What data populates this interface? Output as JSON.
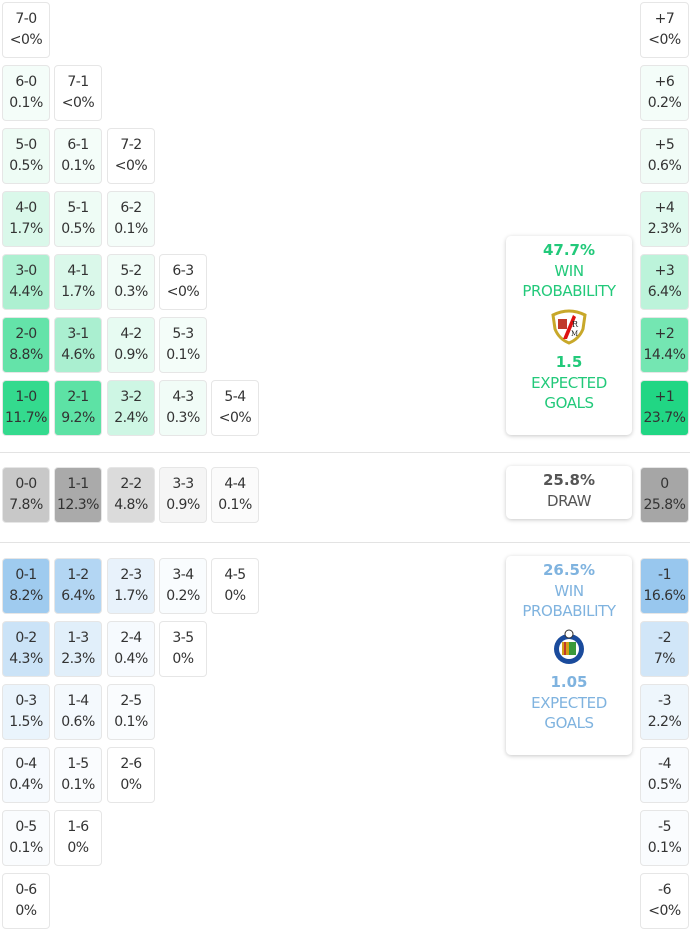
{
  "colors": {
    "home": "#1ed682",
    "away": "#7fb8e6",
    "draw": "#a8a8a8",
    "home_text": "#22c97a",
    "away_text": "#7fb3df",
    "draw_text": "#555555"
  },
  "home_grid": [
    [
      {
        "s": "7-0",
        "p": "<0%"
      }
    ],
    [
      {
        "s": "6-0",
        "p": "0.1%"
      },
      {
        "s": "7-1",
        "p": "<0%"
      }
    ],
    [
      {
        "s": "5-0",
        "p": "0.5%"
      },
      {
        "s": "6-1",
        "p": "0.1%"
      },
      {
        "s": "7-2",
        "p": "<0%"
      }
    ],
    [
      {
        "s": "4-0",
        "p": "1.7%"
      },
      {
        "s": "5-1",
        "p": "0.5%"
      },
      {
        "s": "6-2",
        "p": "0.1%"
      }
    ],
    [
      {
        "s": "3-0",
        "p": "4.4%"
      },
      {
        "s": "4-1",
        "p": "1.7%"
      },
      {
        "s": "5-2",
        "p": "0.3%"
      },
      {
        "s": "6-3",
        "p": "<0%"
      }
    ],
    [
      {
        "s": "2-0",
        "p": "8.8%"
      },
      {
        "s": "3-1",
        "p": "4.6%"
      },
      {
        "s": "4-2",
        "p": "0.9%"
      },
      {
        "s": "5-3",
        "p": "0.1%"
      }
    ],
    [
      {
        "s": "1-0",
        "p": "11.7%"
      },
      {
        "s": "2-1",
        "p": "9.2%"
      },
      {
        "s": "3-2",
        "p": "2.4%"
      },
      {
        "s": "4-3",
        "p": "0.3%"
      },
      {
        "s": "5-4",
        "p": "<0%"
      }
    ]
  ],
  "draw_grid": [
    [
      {
        "s": "0-0",
        "p": "7.8%"
      },
      {
        "s": "1-1",
        "p": "12.3%"
      },
      {
        "s": "2-2",
        "p": "4.8%"
      },
      {
        "s": "3-3",
        "p": "0.9%"
      },
      {
        "s": "4-4",
        "p": "0.1%"
      }
    ]
  ],
  "away_grid": [
    [
      {
        "s": "0-1",
        "p": "8.2%"
      },
      {
        "s": "1-2",
        "p": "6.4%"
      },
      {
        "s": "2-3",
        "p": "1.7%"
      },
      {
        "s": "3-4",
        "p": "0.2%"
      },
      {
        "s": "4-5",
        "p": "0%"
      }
    ],
    [
      {
        "s": "0-2",
        "p": "4.3%"
      },
      {
        "s": "1-3",
        "p": "2.3%"
      },
      {
        "s": "2-4",
        "p": "0.4%"
      },
      {
        "s": "3-5",
        "p": "0%"
      }
    ],
    [
      {
        "s": "0-3",
        "p": "1.5%"
      },
      {
        "s": "1-4",
        "p": "0.6%"
      },
      {
        "s": "2-5",
        "p": "0.1%"
      }
    ],
    [
      {
        "s": "0-4",
        "p": "0.4%"
      },
      {
        "s": "1-5",
        "p": "0.1%"
      },
      {
        "s": "2-6",
        "p": "0%"
      }
    ],
    [
      {
        "s": "0-5",
        "p": "0.1%"
      },
      {
        "s": "1-6",
        "p": "0%"
      }
    ],
    [
      {
        "s": "0-6",
        "p": "0%"
      }
    ]
  ],
  "home_margins": [
    {
      "s": "+7",
      "p": "<0%"
    },
    {
      "s": "+6",
      "p": "0.2%"
    },
    {
      "s": "+5",
      "p": "0.6%"
    },
    {
      "s": "+4",
      "p": "2.3%"
    },
    {
      "s": "+3",
      "p": "6.4%"
    },
    {
      "s": "+2",
      "p": "14.4%"
    },
    {
      "s": "+1",
      "p": "23.7%"
    }
  ],
  "draw_margins": [
    {
      "s": "0",
      "p": "25.8%"
    }
  ],
  "away_margins": [
    {
      "s": "-1",
      "p": "16.6%"
    },
    {
      "s": "-2",
      "p": "7%"
    },
    {
      "s": "-3",
      "p": "2.2%"
    },
    {
      "s": "-4",
      "p": "0.5%"
    },
    {
      "s": "-5",
      "p": "0.1%"
    },
    {
      "s": "-6",
      "p": "<0%"
    }
  ],
  "home_card": {
    "win_pct": "47.7%",
    "win_label_1": "WIN",
    "win_label_2": "PROBABILITY",
    "xg": "1.5",
    "xg_label_1": "EXPECTED",
    "xg_label_2": "GOALS",
    "crest": "rayo-vallecano-crest"
  },
  "draw_card": {
    "pct": "25.8%",
    "label": "DRAW"
  },
  "away_card": {
    "win_pct": "26.5%",
    "win_label_1": "WIN",
    "win_label_2": "PROBABILITY",
    "xg": "1.05",
    "xg_label_1": "EXPECTED",
    "xg_label_2": "GOALS",
    "crest": "getafe-crest"
  }
}
